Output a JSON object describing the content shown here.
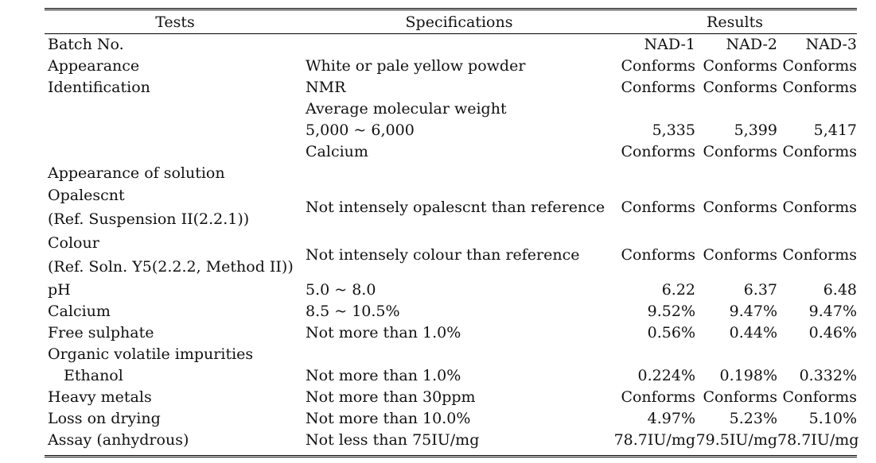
{
  "headers": {
    "tests": "Tests",
    "specifications": "Specifications",
    "results": "Results"
  },
  "batch": {
    "label": "Batch No.",
    "ids": [
      "NAD-1",
      "NAD-2",
      "NAD-3"
    ]
  },
  "rows": [
    {
      "test": "Appearance",
      "spec": "White or pale yellow powder",
      "r1": "Conforms",
      "r2": "Conforms",
      "r3": "Conforms"
    },
    {
      "test": "Identification",
      "spec": "NMR",
      "r1": "Conforms",
      "r2": "Conforms",
      "r3": "Conforms"
    },
    {
      "test": "",
      "spec": "Average molecular weight",
      "r1": "",
      "r2": "",
      "r3": ""
    },
    {
      "test": "",
      "spec": "5,000 ~ 6,000",
      "r1": "5,335",
      "r2": "5,399",
      "r3": "5,417"
    },
    {
      "test": "",
      "spec": "Calcium",
      "r1": "Conforms",
      "r2": "Conforms",
      "r3": "Conforms"
    },
    {
      "test": "Appearance of solution",
      "spec": "",
      "r1": "",
      "r2": "",
      "r3": ""
    }
  ],
  "opalescence": {
    "test_line1": "Opalescnt",
    "test_line2": "(Ref. Suspension II(2.2.1))",
    "spec": "Not intensely opalescnt than reference",
    "r1": "Conforms",
    "r2": "Conforms",
    "r3": "Conforms"
  },
  "colour": {
    "test_line1": "Colour",
    "test_line2": "(Ref. Soln. Y5(2.2.2, Method II))",
    "spec": "Not intensely colour than reference",
    "r1": "Conforms",
    "r2": "Conforms",
    "r3": "Conforms"
  },
  "rows2": [
    {
      "test": "pH",
      "spec": "5.0 ~ 8.0",
      "r1": "6.22",
      "r2": "6.37",
      "r3": "6.48"
    },
    {
      "test": "Calcium",
      "spec": "8.5 ~ 10.5%",
      "r1": "9.52%",
      "r2": "9.47%",
      "r3": "9.47%"
    },
    {
      "test": "Free sulphate",
      "spec": "Not more than 1.0%",
      "r1": "0.56%",
      "r2": "0.44%",
      "r3": "0.46%"
    },
    {
      "test": "Organic volatile impurities",
      "spec": "",
      "r1": "",
      "r2": "",
      "r3": ""
    },
    {
      "test": "Ethanol",
      "spec": "Not more than 1.0%",
      "r1": "0.224%",
      "r2": "0.198%",
      "r3": "0.332%"
    },
    {
      "test": "Heavy metals",
      "spec": "Not more than 30ppm",
      "r1": "Conforms",
      "r2": "Conforms",
      "r3": "Conforms"
    },
    {
      "test": "Loss on drying",
      "spec": "Not more than 10.0%",
      "r1": "4.97%",
      "r2": "5.23%",
      "r3": "5.10%"
    },
    {
      "test": "Assay (anhydrous)",
      "spec": "Not less than 75IU/mg",
      "r1": "78.7IU/mg",
      "r2": "79.5IU/mg",
      "r3": "78.7IU/mg"
    }
  ]
}
